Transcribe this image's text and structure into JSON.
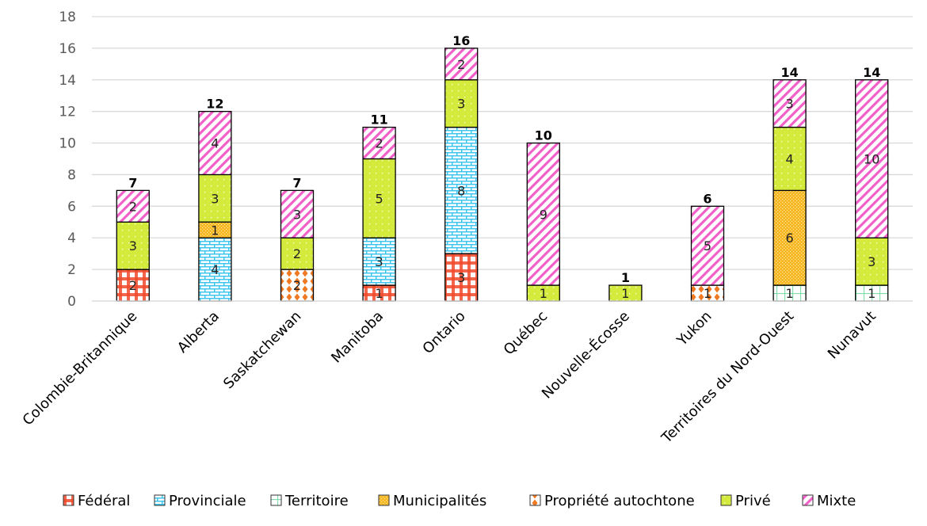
{
  "chart_data": {
    "type": "bar",
    "stacked": true,
    "title": "",
    "xlabel": "",
    "ylabel": "",
    "ylim": [
      0,
      18
    ],
    "yticks": [
      0,
      2,
      4,
      6,
      8,
      10,
      12,
      14,
      16,
      18
    ],
    "grid": true,
    "legend_position": "bottom",
    "categories": [
      "Colombie-Britannique",
      "Alberta",
      "Saskatchewan",
      "Manitoba",
      "Ontario",
      "Québec",
      "Nouvelle-Écosse",
      "Yukon",
      "Territoires du Nord-Ouest",
      "Nunavut"
    ],
    "series": [
      {
        "name": "Fédéral",
        "key": "federal",
        "color": "#f04a2a",
        "pattern": "checker",
        "values": [
          2,
          0,
          0,
          1,
          3,
          0,
          0,
          0,
          0,
          0
        ]
      },
      {
        "name": "Provinciale",
        "key": "provinciale",
        "color": "#3ec4ee",
        "pattern": "brick",
        "values": [
          0,
          4,
          0,
          3,
          8,
          0,
          0,
          0,
          0,
          0
        ]
      },
      {
        "name": "Territoire",
        "key": "territoire",
        "color": "#7fdcaa",
        "pattern": "grid",
        "values": [
          0,
          0,
          0,
          0,
          0,
          0,
          0,
          0,
          1,
          1
        ]
      },
      {
        "name": "Municipalités",
        "key": "municipalites",
        "color": "#f7b928",
        "pattern": "lattice",
        "values": [
          0,
          1,
          0,
          0,
          0,
          0,
          0,
          0,
          6,
          0
        ]
      },
      {
        "name": "Propriété autochtone",
        "key": "autochtone",
        "color": "#f07a22",
        "pattern": "diamond",
        "values": [
          0,
          0,
          2,
          0,
          0,
          0,
          0,
          1,
          0,
          0
        ]
      },
      {
        "name": "Privé",
        "key": "prive",
        "color": "#d4ea3c",
        "pattern": "dots",
        "values": [
          3,
          3,
          2,
          5,
          3,
          1,
          1,
          0,
          4,
          3
        ]
      },
      {
        "name": "Mixte",
        "key": "mixte",
        "color": "#f060c8",
        "pattern": "stripes",
        "values": [
          2,
          4,
          3,
          2,
          2,
          9,
          0,
          5,
          3,
          10
        ]
      }
    ],
    "totals": [
      7,
      12,
      7,
      11,
      16,
      10,
      1,
      6,
      14,
      14
    ]
  }
}
